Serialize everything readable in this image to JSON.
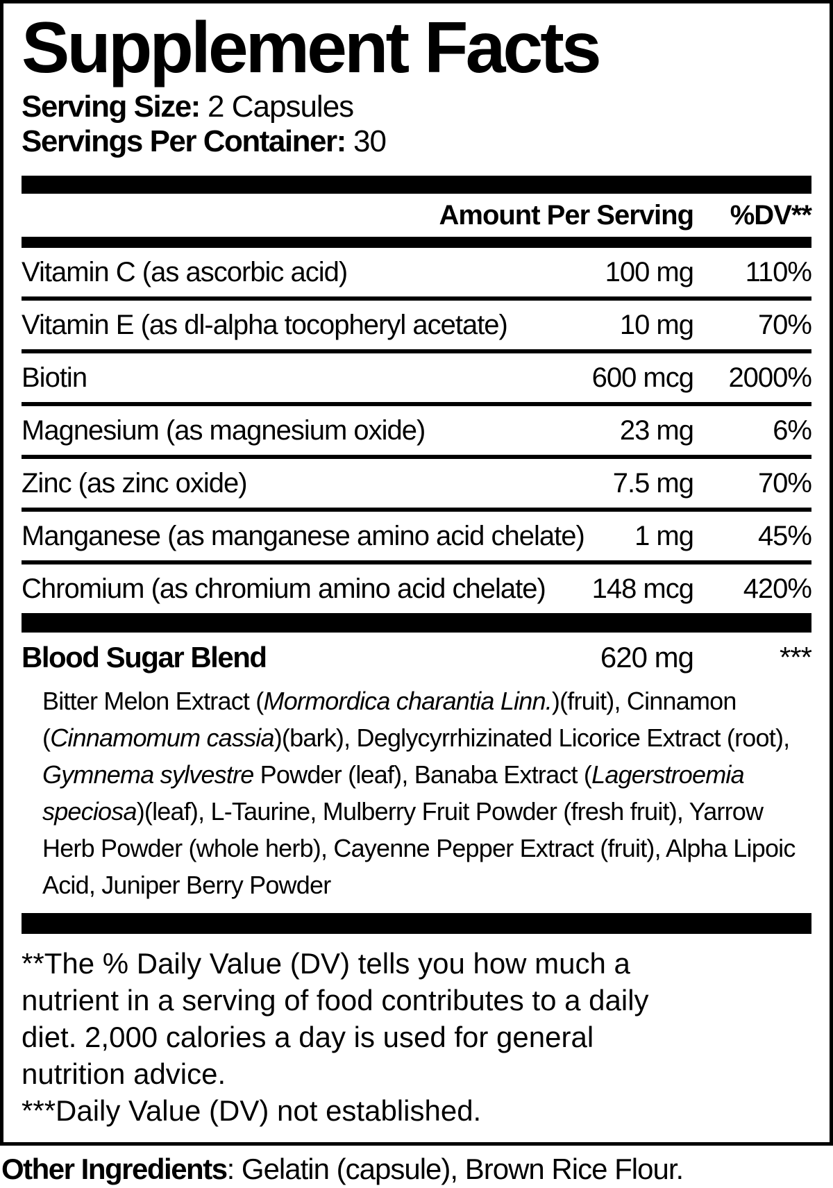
{
  "colors": {
    "ink": "#000000",
    "paper": "#ffffff"
  },
  "label": {
    "title": "Supplement Facts",
    "serving": {
      "size_label": "Serving Size:",
      "size_value": " 2 Capsules",
      "container_label": "Servings Per Container:",
      "container_value": " 30"
    },
    "table": {
      "amount_header": "Amount Per Serving",
      "dv_header": "%DV**",
      "rows": [
        {
          "name": "Vitamin C (as ascorbic acid)",
          "amount": "100 mg",
          "dv": "110%"
        },
        {
          "name": "Vitamin E (as dl-alpha tocopheryl acetate)",
          "amount": "10 mg",
          "dv": "70%"
        },
        {
          "name": "Biotin",
          "amount": "600 mcg",
          "dv": "2000%"
        },
        {
          "name": "Magnesium (as magnesium oxide)",
          "amount": "23 mg",
          "dv": "6%"
        },
        {
          "name": "Zinc (as zinc oxide)",
          "amount": "7.5 mg",
          "dv": "70%"
        },
        {
          "name": "Manganese (as manganese amino acid chelate)",
          "amount": "1 mg",
          "dv": "45%"
        },
        {
          "name": "Chromium (as chromium amino acid chelate)",
          "amount": "148 mcg",
          "dv": "420%"
        }
      ]
    },
    "blend": {
      "name": "Blood Sugar Blend",
      "amount": "620 mg",
      "dv": "***",
      "description_segments": [
        {
          "t": "Bitter Melon Extract ("
        },
        {
          "t": "Mormordica charantia Linn.",
          "i": true
        },
        {
          "t": ")(fruit), Cinnamon ("
        },
        {
          "t": "Cinnamomum cassia",
          "i": true
        },
        {
          "t": ")(bark), Deglycyrrhizinated Licorice Extract (root), "
        },
        {
          "t": "Gymnema sylvestre",
          "i": true
        },
        {
          "t": " Powder (leaf), Banaba Extract ("
        },
        {
          "t": "Lagerstroemia speciosa",
          "i": true
        },
        {
          "t": ")(leaf), L-Taurine, Mulberry Fruit Powder (fresh fruit), Yarrow Herb Powder (whole herb), Cayenne Pepper Extract (fruit), Alpha Lipoic Acid, Juniper Berry Powder"
        }
      ]
    },
    "footnotes": {
      "lines": [
        "**The % Daily Value (DV) tells you how much a",
        "nutrient in a serving of food contributes to a daily",
        "diet. 2,000 calories a day is used for general",
        "nutrition advice.",
        "***Daily Value (DV) not established."
      ]
    },
    "other_ingredients": {
      "label": "Other Ingredients",
      "value": ": Gelatin (capsule), Brown Rice Flour."
    }
  }
}
